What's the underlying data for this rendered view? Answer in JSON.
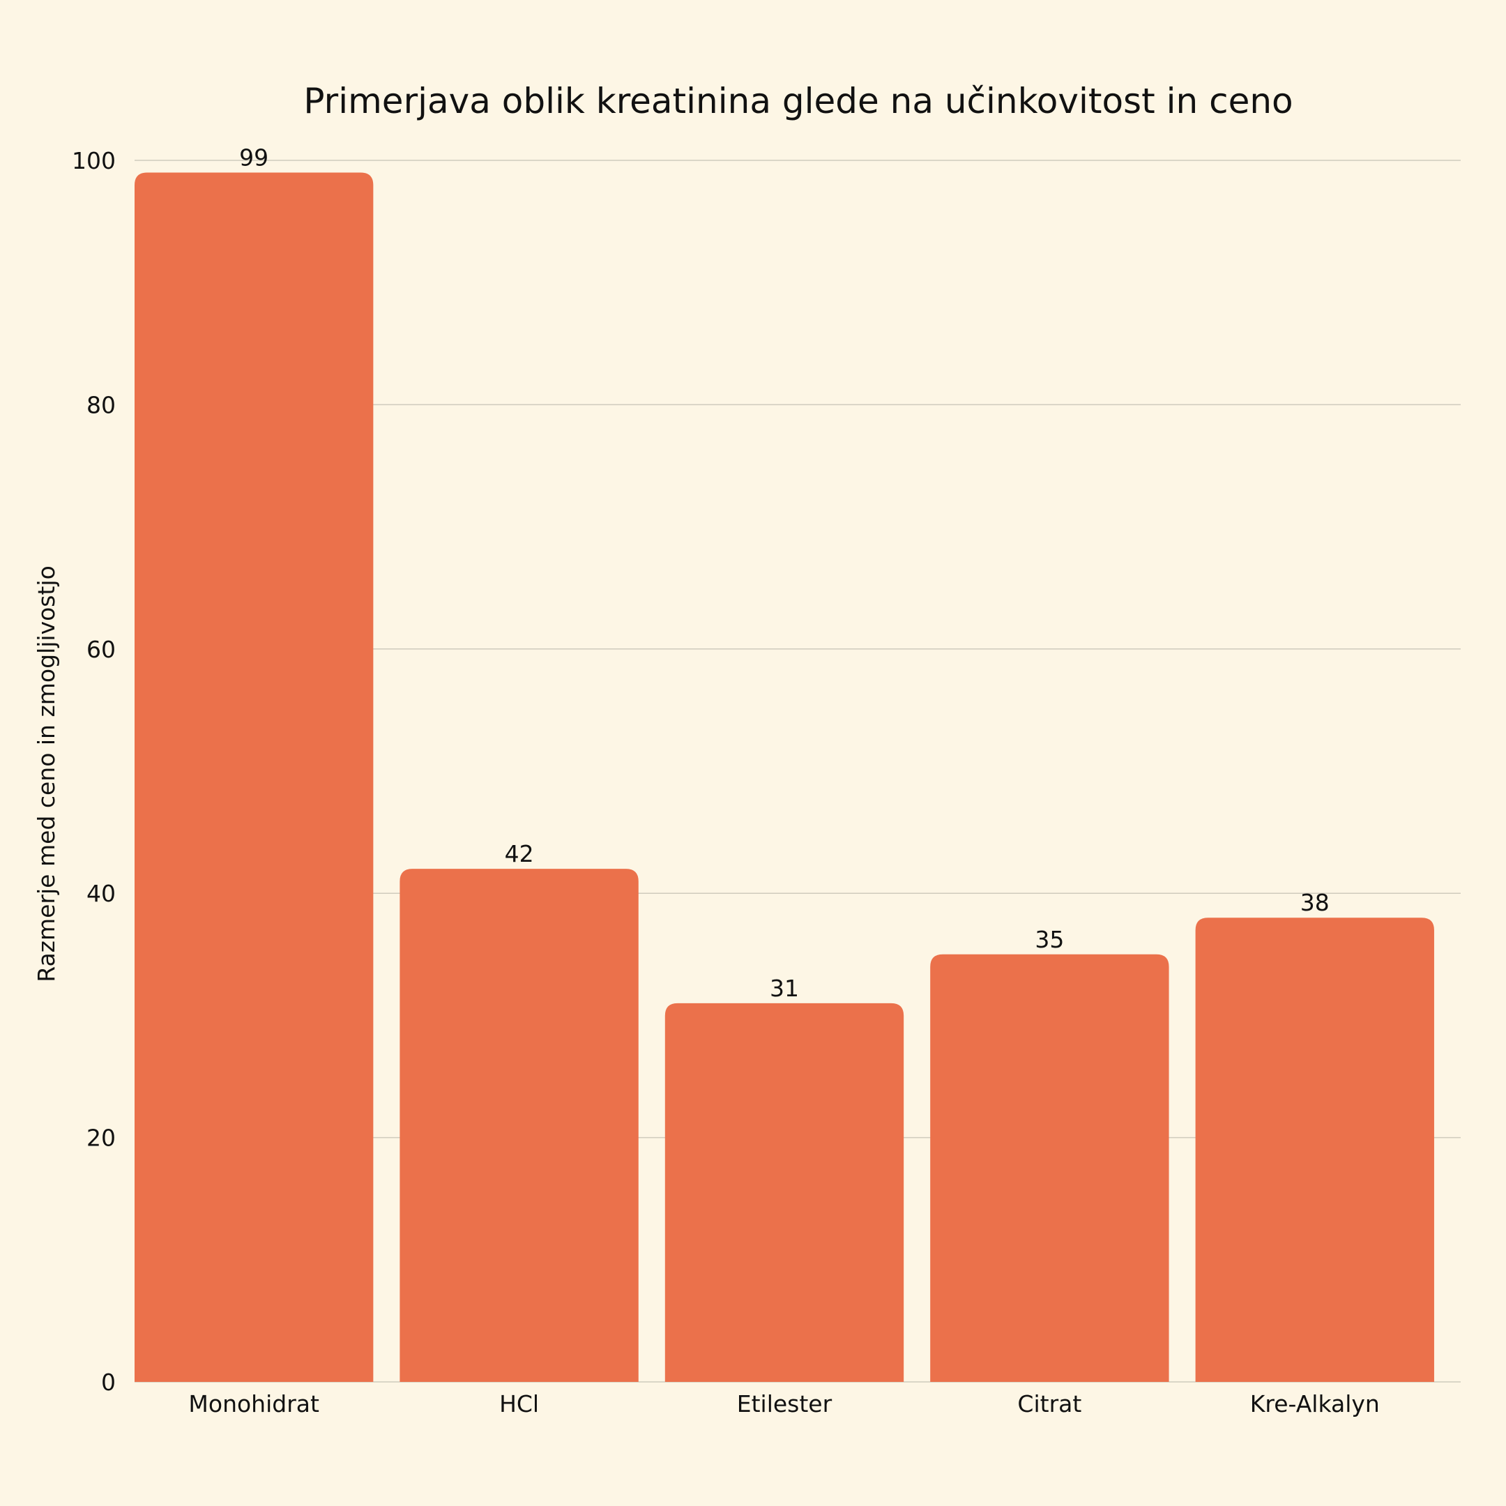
{
  "chart_data": {
    "type": "bar",
    "title": "Primerjava oblik kreatinina glede na učinkovitost in ceno",
    "xlabel": "",
    "ylabel": "Razmerje med ceno in zmogljivostjo",
    "categories": [
      "Monohidrat",
      "HCl",
      "Etilester",
      "Citrat",
      "Kre-Alkalyn"
    ],
    "values": [
      99,
      42,
      31,
      35,
      38
    ],
    "ylim": [
      0,
      100
    ],
    "yticks": [
      "0",
      "20",
      "40",
      "60",
      "80",
      "100"
    ],
    "grid": true,
    "legend": "none",
    "colors": {
      "bar": "#eb714b",
      "background": "#fdf6e5",
      "grid": "#cfcbbd",
      "text": "#111111"
    }
  }
}
